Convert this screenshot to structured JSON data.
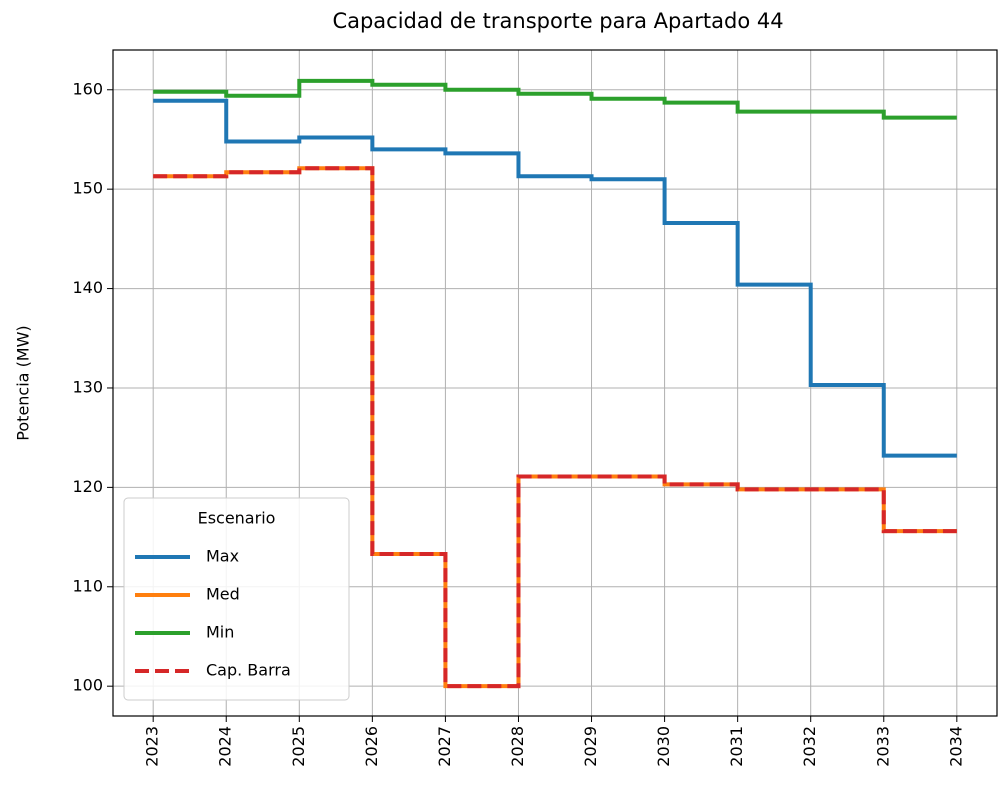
{
  "chart_data": {
    "type": "line",
    "drawstyle": "steps-post",
    "title": "Capacidad de transporte para Apartado 44",
    "ylabel": "Potencia (MW)",
    "x": [
      2023,
      2024,
      2025,
      2026,
      2027,
      2028,
      2029,
      2030,
      2031,
      2032,
      2033,
      2034
    ],
    "series": [
      {
        "name": "Max",
        "color": "#1f77b4",
        "linestyle": "solid",
        "values": [
          158.9,
          154.8,
          155.2,
          154.0,
          153.6,
          151.3,
          151.0,
          146.6,
          140.4,
          130.3,
          123.2,
          123.2
        ]
      },
      {
        "name": "Med",
        "color": "#ff7f0e",
        "linestyle": "solid",
        "values": [
          151.3,
          151.7,
          152.1,
          113.3,
          100.0,
          121.1,
          121.1,
          120.3,
          119.8,
          119.8,
          115.6,
          115.6
        ]
      },
      {
        "name": "Min",
        "color": "#2ca02c",
        "linestyle": "solid",
        "values": [
          159.8,
          159.4,
          160.9,
          160.5,
          160.0,
          159.6,
          159.1,
          158.7,
          157.8,
          157.8,
          157.2,
          157.2
        ]
      },
      {
        "name": "Cap. Barra",
        "color": "#d62728",
        "linestyle": "dashed",
        "values": [
          151.3,
          151.7,
          152.1,
          113.3,
          100.0,
          121.1,
          121.1,
          120.3,
          119.8,
          119.8,
          115.6,
          115.6
        ]
      }
    ],
    "xlim": [
      2022.45,
      2034.55
    ],
    "xticks": [
      2023,
      2024,
      2025,
      2026,
      2027,
      2028,
      2029,
      2030,
      2031,
      2032,
      2033,
      2034
    ],
    "ylim": [
      97,
      164
    ],
    "yticks": [
      100,
      110,
      120,
      130,
      140,
      150,
      160
    ],
    "grid": true,
    "legend": {
      "title": "Escenario",
      "loc": "lower left"
    }
  }
}
